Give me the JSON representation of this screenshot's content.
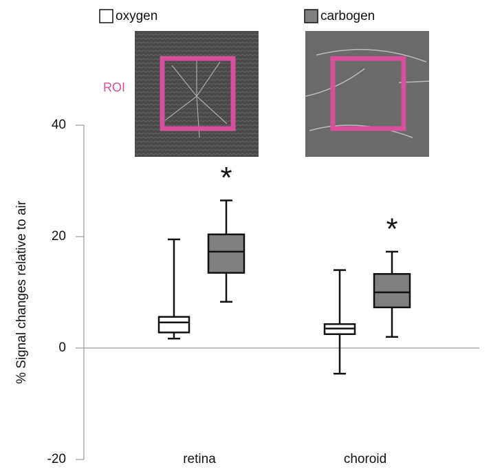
{
  "chart_data": {
    "type": "box",
    "y_label": "% Signal changes relative to air",
    "categories": [
      "retina",
      "choroid"
    ],
    "series": [
      {
        "name": "oxygen",
        "color": "#ffffff",
        "values": [
          {
            "min": 1.7,
            "q1": 2.8,
            "median": 4.6,
            "q3": 5.6,
            "max": 19.5
          },
          {
            "min": -4.6,
            "q1": 2.5,
            "median": 3.5,
            "q3": 4.3,
            "max": 14
          }
        ]
      },
      {
        "name": "carbogen",
        "color": "#808080",
        "values": [
          {
            "min": 8.3,
            "q1": 13.5,
            "median": 17.3,
            "q3": 20.4,
            "max": 26.5
          },
          {
            "min": 2,
            "q1": 7.3,
            "median": 10,
            "q3": 13.3,
            "max": 17.3
          }
        ]
      }
    ],
    "ylim": [
      -20,
      40
    ],
    "yticks": [
      40,
      20,
      0,
      -20
    ],
    "annotations": {
      "roi": "ROI",
      "significance": [
        "*",
        "*"
      ]
    }
  }
}
